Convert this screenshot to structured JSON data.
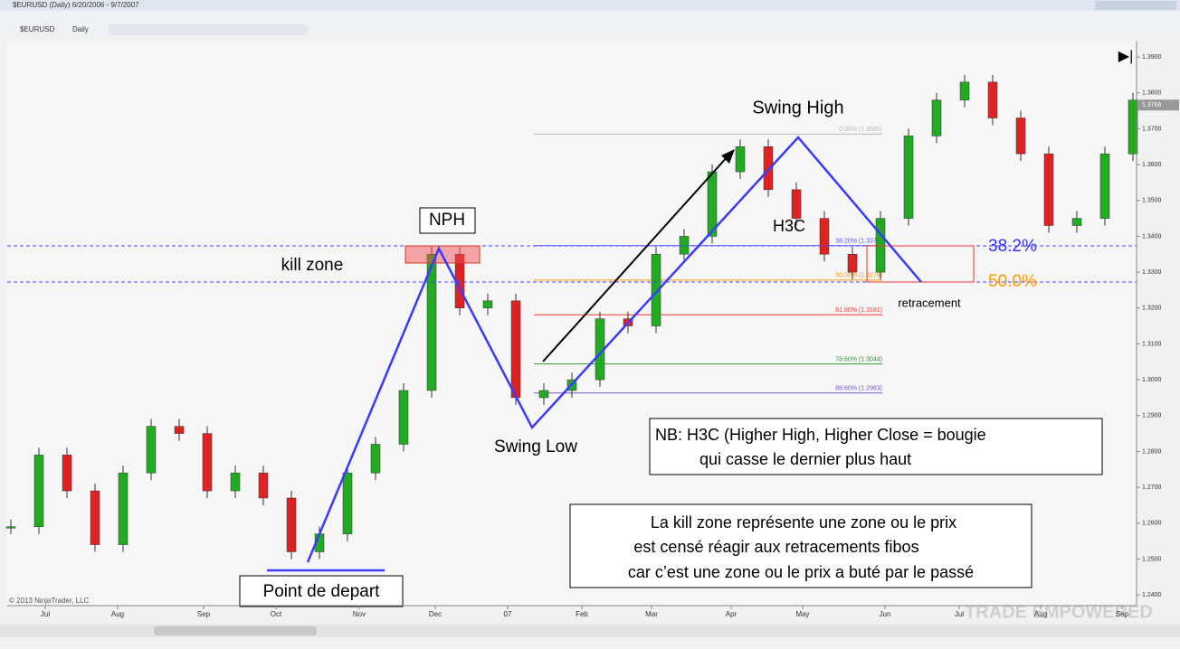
{
  "window": {
    "title": "$EURUSD (Daily) 6/20/2006 - 9/7/2007"
  },
  "toolbar": {
    "symbol": "$EURUSD",
    "interval": "Daily"
  },
  "chart": {
    "ylim": [
      1.2375,
      1.3933
    ],
    "yticks": [
      {
        "value": 1.39,
        "label": "1.3900"
      },
      {
        "value": 1.38,
        "label": "1.3800"
      },
      {
        "value": 1.37,
        "label": "1.3700"
      },
      {
        "value": 1.36,
        "label": "1.3600"
      },
      {
        "value": 1.35,
        "label": "1.3500"
      },
      {
        "value": 1.34,
        "label": "1.3400"
      },
      {
        "value": 1.33,
        "label": "1.3300"
      },
      {
        "value": 1.32,
        "label": "1.3200"
      },
      {
        "value": 1.31,
        "label": "1.3100"
      },
      {
        "value": 1.3,
        "label": "1.3000"
      },
      {
        "value": 1.29,
        "label": "1.2900"
      },
      {
        "value": 1.28,
        "label": "1.2800"
      },
      {
        "value": 1.27,
        "label": "1.2700"
      },
      {
        "value": 1.26,
        "label": "1.2600"
      },
      {
        "value": 1.25,
        "label": "1.2500"
      },
      {
        "value": 1.24,
        "label": "1.2400"
      }
    ],
    "months": [
      "Jul",
      "Aug",
      "Sep",
      "Oct",
      "Nov",
      "Dec",
      "07",
      "Feb",
      "Mar",
      "Apr",
      "May",
      "Jun",
      "Jul",
      "Aug",
      "Sep"
    ],
    "closes": [
      1.259,
      1.279,
      1.269,
      1.254,
      1.274,
      1.287,
      1.285,
      1.269,
      1.274,
      1.267,
      1.252,
      1.257,
      1.274,
      1.282,
      1.297,
      1.335,
      1.32,
      1.322,
      1.295,
      1.297,
      1.3,
      1.317,
      1.315,
      1.335,
      1.34,
      1.358,
      1.365,
      1.353,
      1.345,
      1.335,
      1.33,
      1.345,
      1.368,
      1.378,
      1.383,
      1.373,
      1.363,
      1.343,
      1.345,
      1.363,
      1.378
    ],
    "last_price": {
      "value": 1.3766,
      "label": "1.3766"
    },
    "fib_levels": [
      {
        "label": "0.00% (1.3685)",
        "price": 1.3685,
        "color": "#bbbbbb"
      },
      {
        "label": "38.20% (1.3374)",
        "price": 1.3374,
        "color": "#5555ff"
      },
      {
        "label": "50.00% (1.3278)",
        "price": 1.3278,
        "color": "#ff9900"
      },
      {
        "label": "61.80% (1.3181)",
        "price": 1.3181,
        "color": "#ff3333"
      },
      {
        "label": "78.60% (1.3044)",
        "price": 1.3044,
        "color": "#339933"
      },
      {
        "label": "88.60% (1.2963)",
        "price": 1.2963,
        "color": "#7755cc"
      }
    ],
    "copyright": "© 2013 NinjaTrader, LLC"
  },
  "annotations": {
    "swing_high": "Swing High",
    "nph": "NPH",
    "kill_zone": "kill zone",
    "h3c": "H3C",
    "fib_382": "38.2%",
    "fib_500": "50.0%",
    "retracement": "retracement",
    "swing_low": "Swing Low",
    "start": "Point  de depart",
    "nb": [
      "NB: H3C (Higher High, Higher Close =  bougie",
      "qui casse le dernier plus haut"
    ],
    "kill_note": [
      "La kill zone représente une zone ou le prix",
      "est censé réagir aux retracements fibos",
      "car c’est une  zone ou le prix a buté par le passé"
    ]
  },
  "watermark": "TRADE EMPOWERED"
}
